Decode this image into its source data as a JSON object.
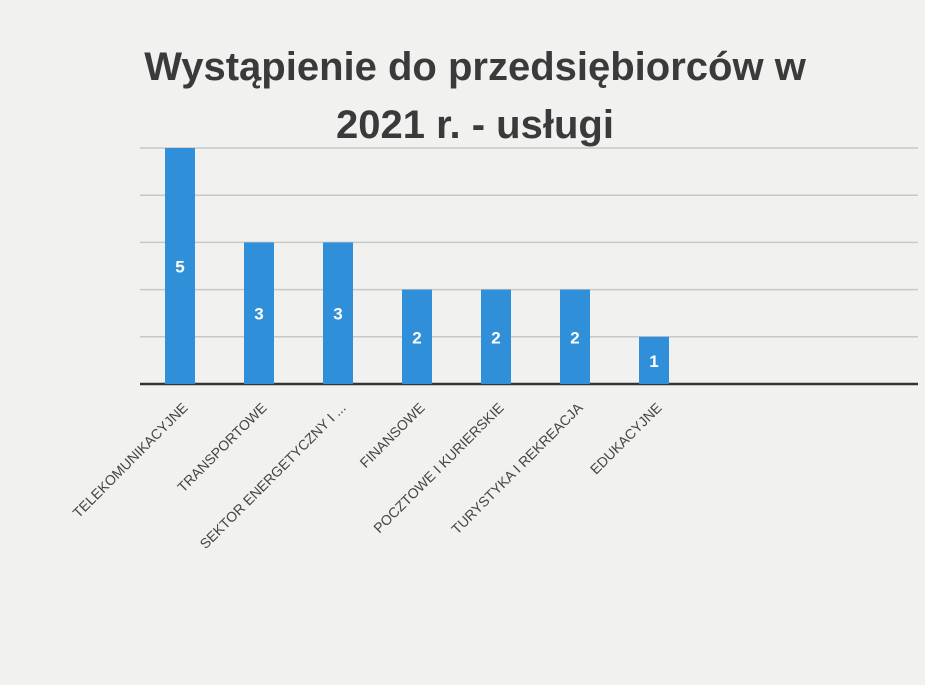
{
  "chart_data": {
    "type": "bar",
    "title": "Wystąpienie do przedsiębiorców w 2021 r. - usługi",
    "categories": [
      "TELEKOMUNIKACYJNE",
      "TRANSPORTOWE",
      "SEKTOR ENERGETYCZNY I ...",
      "FINANSOWE",
      "POCZTOWE I KURIERSKIE",
      "TURYSTYKA I REKREACJA",
      "EDUKACYJNE"
    ],
    "values": [
      5,
      3,
      3,
      2,
      2,
      2,
      1
    ],
    "color": "#2f8fd8",
    "ylim": [
      0,
      5
    ],
    "yticks": [
      0,
      1,
      2,
      3,
      4,
      5
    ],
    "grid": true
  }
}
